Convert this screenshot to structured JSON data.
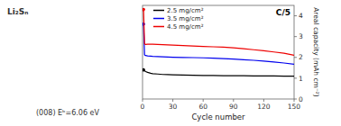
{
  "chart_data": {
    "type": "line",
    "xlabel": "Cycle number",
    "ylabel": "Areal capacity (mAh cm⁻²)",
    "annotations": [
      "C/5",
      "Li₂Sₙ",
      "(008)  Eᵇ=6.06 eV"
    ],
    "xlim": [
      0,
      150
    ],
    "xticks": [
      0,
      30,
      60,
      90,
      120,
      150
    ],
    "ylim": [
      0,
      4.5
    ],
    "yticks": [
      0,
      1,
      2,
      3,
      4
    ],
    "grid": false,
    "legend": "upper left",
    "series": [
      {
        "name": "2.5 mg/cm²",
        "color": "#000000",
        "x": [
          1,
          3,
          5,
          8,
          10,
          15,
          20,
          25,
          30,
          40,
          50,
          60,
          70,
          80,
          90,
          100,
          110,
          120,
          130,
          140,
          150
        ],
        "values": [
          1.4,
          1.32,
          1.28,
          1.24,
          1.22,
          1.2,
          1.18,
          1.17,
          1.16,
          1.15,
          1.14,
          1.13,
          1.13,
          1.12,
          1.12,
          1.12,
          1.11,
          1.11,
          1.11,
          1.1,
          1.1
        ]
      },
      {
        "name": "3.5 mg/cm²",
        "color": "#0000ee",
        "x": [
          1,
          2,
          3,
          5,
          8,
          10,
          15,
          20,
          25,
          30,
          40,
          50,
          60,
          70,
          80,
          90,
          100,
          110,
          120,
          130,
          140,
          150
        ],
        "values": [
          3.6,
          2.12,
          2.09,
          2.07,
          2.06,
          2.05,
          2.04,
          2.03,
          2.02,
          2.01,
          2.0,
          1.99,
          1.98,
          1.96,
          1.94,
          1.92,
          1.89,
          1.86,
          1.82,
          1.78,
          1.73,
          1.67
        ]
      },
      {
        "name": "4.5 mg/cm²",
        "color": "#ee0000",
        "x": [
          1,
          2,
          3,
          5,
          8,
          10,
          15,
          20,
          25,
          30,
          40,
          50,
          60,
          70,
          80,
          90,
          100,
          110,
          120,
          130,
          140,
          150
        ],
        "values": [
          4.3,
          2.65,
          2.62,
          2.63,
          2.63,
          2.63,
          2.62,
          2.61,
          2.6,
          2.59,
          2.57,
          2.55,
          2.53,
          2.51,
          2.49,
          2.46,
          2.42,
          2.37,
          2.32,
          2.26,
          2.2,
          2.1
        ]
      }
    ]
  }
}
